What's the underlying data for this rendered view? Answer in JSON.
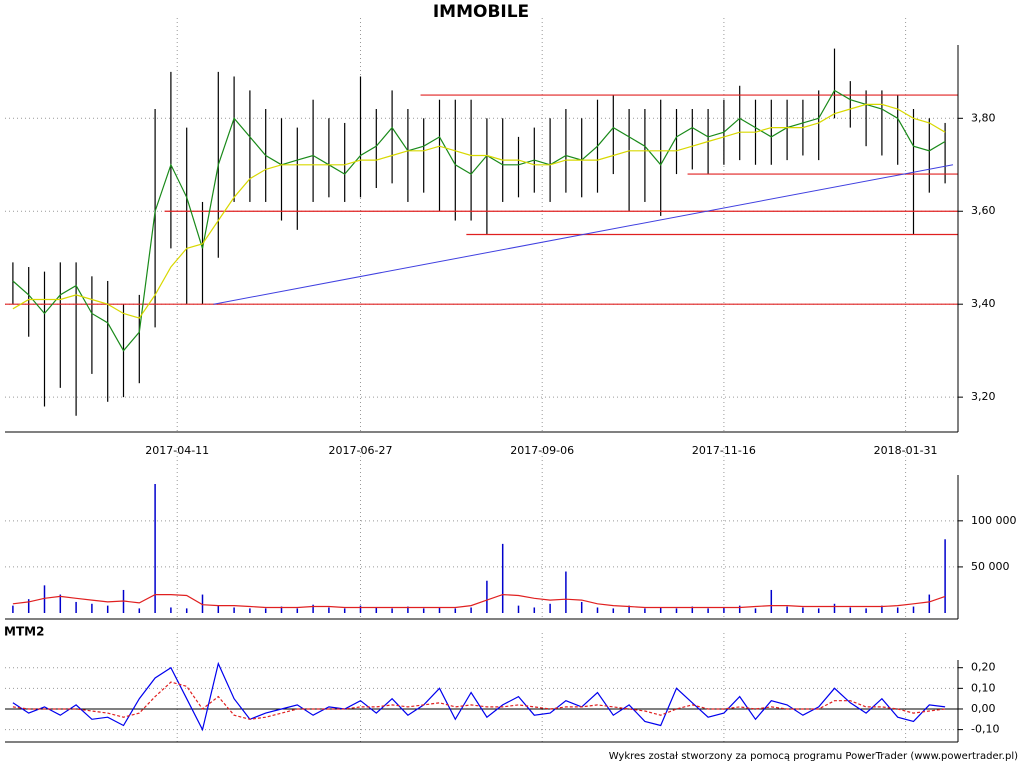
{
  "chart_data": [
    {
      "type": "stock",
      "title": "IMMOBILE",
      "xlim": [
        -0.5,
        59.5
      ],
      "xticks": [
        {
          "value": 10.4,
          "label": "2017-04-11"
        },
        {
          "value": 22,
          "label": "2017-06-27"
        },
        {
          "value": 33.5,
          "label": "2017-09-06"
        },
        {
          "value": 45,
          "label": "2017-11-16"
        },
        {
          "value": 56.5,
          "label": "2018-01-31"
        }
      ],
      "ylim": [
        3.125,
        3.99
      ],
      "yticks": [
        {
          "value": 3.2,
          "label": "3,20"
        },
        {
          "value": 3.4,
          "label": "3,40"
        },
        {
          "value": 3.6,
          "label": "3,60"
        },
        {
          "value": 3.8,
          "label": "3,80"
        }
      ],
      "bar_color": "#000000",
      "high": [
        3.49,
        3.48,
        3.47,
        3.49,
        3.49,
        3.46,
        3.45,
        3.4,
        3.42,
        3.82,
        3.9,
        3.78,
        3.62,
        3.9,
        3.89,
        3.86,
        3.82,
        3.8,
        3.78,
        3.84,
        3.8,
        3.79,
        3.89,
        3.82,
        3.86,
        3.82,
        3.8,
        3.84,
        3.84,
        3.84,
        3.8,
        3.8,
        3.76,
        3.78,
        3.8,
        3.82,
        3.8,
        3.84,
        3.85,
        3.82,
        3.82,
        3.84,
        3.82,
        3.82,
        3.82,
        3.84,
        3.87,
        3.84,
        3.84,
        3.84,
        3.84,
        3.86,
        3.95,
        3.88,
        3.86,
        3.86,
        3.85,
        3.82,
        3.8,
        3.79
      ],
      "low": [
        3.4,
        3.33,
        3.18,
        3.22,
        3.16,
        3.25,
        3.19,
        3.2,
        3.23,
        3.35,
        3.52,
        3.4,
        3.4,
        3.5,
        3.62,
        3.62,
        3.62,
        3.58,
        3.56,
        3.62,
        3.63,
        3.62,
        3.63,
        3.65,
        3.66,
        3.62,
        3.64,
        3.6,
        3.58,
        3.58,
        3.55,
        3.62,
        3.63,
        3.64,
        3.62,
        3.64,
        3.63,
        3.64,
        3.68,
        3.6,
        3.62,
        3.59,
        3.68,
        3.69,
        3.68,
        3.7,
        3.71,
        3.7,
        3.7,
        3.71,
        3.72,
        3.71,
        3.8,
        3.78,
        3.74,
        3.72,
        3.7,
        3.55,
        3.64,
        3.66
      ],
      "series": [
        {
          "color": "#1a8a1a",
          "values": [
            3.45,
            3.42,
            3.38,
            3.42,
            3.44,
            3.38,
            3.36,
            3.3,
            3.34,
            3.6,
            3.7,
            3.63,
            3.52,
            3.7,
            3.8,
            3.76,
            3.72,
            3.7,
            3.71,
            3.72,
            3.7,
            3.68,
            3.72,
            3.74,
            3.78,
            3.73,
            3.74,
            3.76,
            3.7,
            3.68,
            3.72,
            3.7,
            3.7,
            3.71,
            3.7,
            3.72,
            3.71,
            3.74,
            3.78,
            3.76,
            3.74,
            3.7,
            3.76,
            3.78,
            3.76,
            3.77,
            3.8,
            3.78,
            3.76,
            3.78,
            3.79,
            3.8,
            3.86,
            3.84,
            3.83,
            3.82,
            3.8,
            3.74,
            3.73,
            3.75
          ]
        },
        {
          "color": "#d8d800",
          "values": [
            3.39,
            3.41,
            3.41,
            3.41,
            3.42,
            3.41,
            3.4,
            3.38,
            3.37,
            3.42,
            3.48,
            3.52,
            3.53,
            3.58,
            3.63,
            3.67,
            3.69,
            3.7,
            3.7,
            3.7,
            3.7,
            3.7,
            3.71,
            3.71,
            3.72,
            3.73,
            3.73,
            3.74,
            3.73,
            3.72,
            3.72,
            3.71,
            3.71,
            3.7,
            3.7,
            3.71,
            3.71,
            3.71,
            3.72,
            3.73,
            3.73,
            3.73,
            3.73,
            3.74,
            3.75,
            3.76,
            3.77,
            3.77,
            3.78,
            3.78,
            3.78,
            3.79,
            3.81,
            3.82,
            3.83,
            3.83,
            3.82,
            3.8,
            3.79,
            3.77
          ]
        }
      ],
      "level_color": "#e02020",
      "levels": [
        {
          "value": 3.85,
          "from": 25.8
        },
        {
          "value": 3.68,
          "from": 42.7
        },
        {
          "value": 3.6,
          "from": 9.6
        },
        {
          "value": 3.55,
          "from": 28.7
        },
        {
          "value": 3.4,
          "from": -0.5
        }
      ],
      "trend": {
        "color": "#4040e0",
        "x": [
          12.7,
          59.5
        ],
        "y": [
          3.4,
          3.7
        ]
      }
    },
    {
      "type": "volume",
      "ylim": [
        0,
        166000
      ],
      "yticks": [
        {
          "value": 50000,
          "label": "50 000"
        },
        {
          "value": 100000,
          "label": "100 000"
        }
      ],
      "color": "#0000cc",
      "values": [
        8000,
        15000,
        30000,
        20000,
        12000,
        10000,
        8000,
        25000,
        5000,
        140000,
        6000,
        5000,
        20000,
        8000,
        6000,
        5000,
        5000,
        7000,
        5000,
        9000,
        6000,
        5000,
        8000,
        6000,
        5000,
        7000,
        5000,
        6000,
        5000,
        6000,
        35000,
        75000,
        8000,
        6000,
        10000,
        45000,
        12000,
        6000,
        5000,
        8000,
        5000,
        6000,
        5000,
        7000,
        5000,
        6000,
        8000,
        5000,
        25000,
        7000,
        6000,
        5000,
        10000,
        6000,
        5000,
        8000,
        6000,
        7000,
        20000,
        80000
      ],
      "series": [
        {
          "color": "#e02020",
          "values": [
            10000,
            12000,
            16000,
            18000,
            16000,
            14000,
            12000,
            13000,
            11000,
            20000,
            20000,
            19000,
            9000,
            8000,
            8000,
            7000,
            6000,
            6000,
            6000,
            7000,
            7000,
            6000,
            6000,
            6000,
            6000,
            6000,
            6000,
            6000,
            6000,
            8000,
            14000,
            20000,
            19000,
            16000,
            14000,
            15000,
            14000,
            10000,
            8000,
            7000,
            6000,
            6000,
            6000,
            6000,
            6000,
            6000,
            6000,
            7000,
            8000,
            8000,
            7000,
            7000,
            7000,
            7000,
            7000,
            7000,
            8000,
            10000,
            12000,
            18000
          ]
        }
      ]
    },
    {
      "type": "line",
      "title": "MTM2",
      "ylim": [
        -0.16,
        0.31
      ],
      "yticks": [
        {
          "value": -0.1,
          "label": "-0,10"
        },
        {
          "value": 0,
          "label": "0,00"
        },
        {
          "value": 0.1,
          "label": "0,10"
        },
        {
          "value": 0.2,
          "label": "0,20"
        }
      ],
      "series": [
        {
          "color": "#0000ee",
          "values": [
            0.03,
            -0.02,
            0.01,
            -0.03,
            0.02,
            -0.05,
            -0.04,
            -0.08,
            0.05,
            0.15,
            0.2,
            0.05,
            -0.1,
            0.22,
            0.05,
            -0.05,
            -0.02,
            0.0,
            0.02,
            -0.03,
            0.01,
            0.0,
            0.04,
            -0.02,
            0.05,
            -0.03,
            0.02,
            0.1,
            -0.05,
            0.08,
            -0.04,
            0.02,
            0.06,
            -0.03,
            -0.02,
            0.04,
            0.01,
            0.08,
            -0.03,
            0.02,
            -0.06,
            -0.08,
            0.1,
            0.03,
            -0.04,
            -0.02,
            0.06,
            -0.05,
            0.04,
            0.02,
            -0.03,
            0.01,
            0.1,
            0.03,
            -0.02,
            0.05,
            -0.04,
            -0.06,
            0.02,
            0.01
          ]
        },
        {
          "color": "#e02020",
          "dashed": true,
          "values": [
            0.01,
            0.0,
            0.0,
            0.0,
            0.0,
            -0.01,
            -0.02,
            -0.04,
            -0.02,
            0.06,
            0.13,
            0.11,
            0.0,
            0.06,
            -0.03,
            -0.05,
            -0.04,
            -0.02,
            0.0,
            0.0,
            0.0,
            0.0,
            0.01,
            0.01,
            0.02,
            0.01,
            0.02,
            0.03,
            0.01,
            0.02,
            0.01,
            0.01,
            0.02,
            0.01,
            0.0,
            0.01,
            0.01,
            0.02,
            0.01,
            0.0,
            -0.01,
            -0.03,
            0.0,
            0.02,
            0.0,
            0.0,
            0.01,
            0.0,
            0.01,
            0.0,
            0.0,
            0.0,
            0.04,
            0.04,
            0.01,
            0.01,
            0.0,
            -0.02,
            -0.01,
            0.0
          ]
        }
      ]
    }
  ],
  "footer": "Wykres został stworzony za pomocą programu PowerTrader (www.powertrader.pl)"
}
